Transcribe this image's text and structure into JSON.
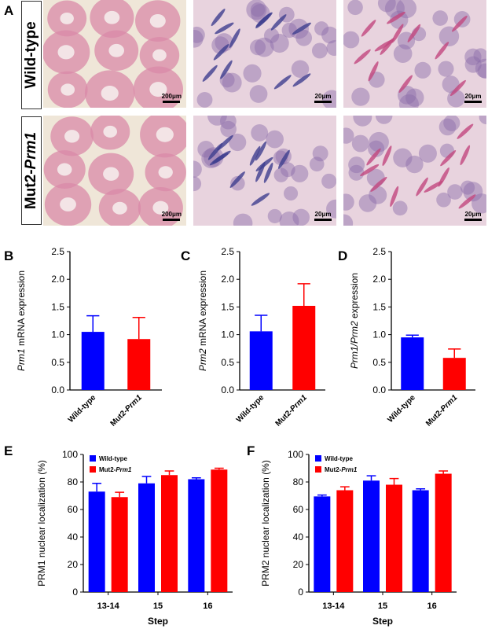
{
  "panels": {
    "A": "A",
    "B": "B",
    "C": "C",
    "D": "D",
    "E": "E",
    "F": "F"
  },
  "histology": {
    "rows": [
      {
        "label": "Wild-type",
        "label_italic": ""
      },
      {
        "label": "Mut2-",
        "label_italic": "Prm1"
      }
    ],
    "scale_bars": [
      [
        "200μm",
        "20μm",
        "20μm"
      ],
      [
        "200μm",
        "20μm",
        "20μm"
      ]
    ],
    "colors": {
      "background": "#efe6d8",
      "stain_pink": "#d98aa8",
      "stain_purple": "#8a6aa8"
    }
  },
  "chart_data": [
    {
      "id": "B",
      "type": "bar",
      "ylabel_parts": [
        {
          "t": "Prm1",
          "i": true
        },
        {
          "t": " mRNA expression",
          "i": false
        }
      ],
      "categories": [
        [
          {
            "t": "Wild-type",
            "i": false
          }
        ],
        [
          {
            "t": "Mut2-",
            "i": false
          },
          {
            "t": "Prm1",
            "i": true
          }
        ]
      ],
      "values": [
        1.05,
        0.92
      ],
      "errors": [
        0.29,
        0.39
      ],
      "colors": [
        "#0000ff",
        "#ff0000"
      ],
      "ylim": [
        0,
        2.5
      ],
      "yticks": [
        "0.0",
        "0.5",
        "1.0",
        "1.5",
        "2.0",
        "2.5"
      ]
    },
    {
      "id": "C",
      "type": "bar",
      "ylabel_parts": [
        {
          "t": "Prm2",
          "i": true
        },
        {
          "t": " mRNA expression",
          "i": false
        }
      ],
      "categories": [
        [
          {
            "t": "Wild-type",
            "i": false
          }
        ],
        [
          {
            "t": "Mut2-",
            "i": false
          },
          {
            "t": "Prm1",
            "i": true
          }
        ]
      ],
      "values": [
        1.06,
        1.52
      ],
      "errors": [
        0.29,
        0.4
      ],
      "colors": [
        "#0000ff",
        "#ff0000"
      ],
      "ylim": [
        0,
        2.5
      ],
      "yticks": [
        "0.0",
        "0.5",
        "1.0",
        "1.5",
        "2.0",
        "2.5"
      ]
    },
    {
      "id": "D",
      "type": "bar",
      "ylabel_parts": [
        {
          "t": "Prm1/Prm2",
          "i": true
        },
        {
          "t": " expression",
          "i": false
        }
      ],
      "categories": [
        [
          {
            "t": "Wild-type",
            "i": false
          }
        ],
        [
          {
            "t": "Mut2-",
            "i": false
          },
          {
            "t": "Prm1",
            "i": true
          }
        ]
      ],
      "values": [
        0.95,
        0.58
      ],
      "errors": [
        0.04,
        0.16
      ],
      "colors": [
        "#0000ff",
        "#ff0000"
      ],
      "ylim": [
        0,
        2.5
      ],
      "yticks": [
        "0.0",
        "0.5",
        "1.0",
        "1.5",
        "2.0",
        "2.5"
      ]
    },
    {
      "id": "E",
      "type": "bar",
      "ylabel_parts": [
        {
          "t": "PRM1 nuclear localization (%)",
          "i": false
        }
      ],
      "xlabel": "Step",
      "categories": [
        "13-14",
        "15",
        "16"
      ],
      "series": [
        {
          "name_parts": [
            {
              "t": "Wild-type",
              "i": false
            }
          ],
          "color": "#0000ff",
          "values": [
            73,
            79,
            82
          ],
          "errors": [
            6,
            5,
            1
          ]
        },
        {
          "name_parts": [
            {
              "t": "Mut2-",
              "i": false
            },
            {
              "t": "Prm1",
              "i": true
            }
          ],
          "color": "#ff0000",
          "values": [
            69,
            85,
            89
          ],
          "errors": [
            3.5,
            3,
            1
          ]
        }
      ],
      "ylim": [
        0,
        100
      ],
      "yticks": [
        "0",
        "20",
        "40",
        "60",
        "80",
        "100"
      ],
      "legend": "top-left"
    },
    {
      "id": "F",
      "type": "bar",
      "ylabel_parts": [
        {
          "t": "PRM2 nuclear localization (%)",
          "i": false
        }
      ],
      "xlabel": "Step",
      "categories": [
        "13-14",
        "15",
        "16"
      ],
      "series": [
        {
          "name_parts": [
            {
              "t": "Wild-type",
              "i": false
            }
          ],
          "color": "#0000ff",
          "values": [
            69.5,
            81,
            74
          ],
          "errors": [
            1,
            3.5,
            1
          ]
        },
        {
          "name_parts": [
            {
              "t": "Mut2-",
              "i": false
            },
            {
              "t": "Prm1",
              "i": true
            }
          ],
          "color": "#ff0000",
          "values": [
            74,
            78,
            86
          ],
          "errors": [
            2.5,
            4.5,
            2
          ]
        }
      ],
      "ylim": [
        0,
        100
      ],
      "yticks": [
        "0",
        "20",
        "40",
        "60",
        "80",
        "100"
      ],
      "legend": "top-left"
    }
  ]
}
